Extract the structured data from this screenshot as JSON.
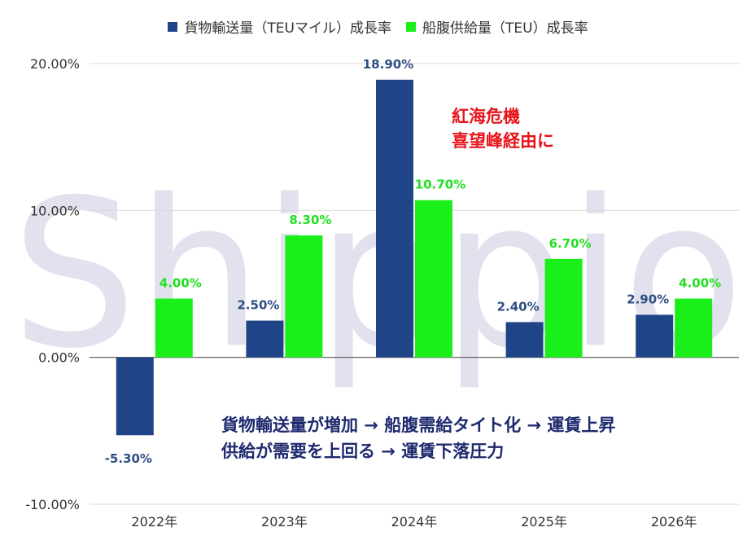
{
  "legend": {
    "series1": "貨物輸送量（TEUマイル）成長率",
    "series2": "船腹供給量（TEU）成長率"
  },
  "watermark": "Shippio",
  "annotations": {
    "red_line1": "紅海危機",
    "red_line2": "喜望峰経由に",
    "blue_line1": "貨物輸送量が増加 → 船腹需給タイト化 → 運賃上昇",
    "blue_line2": "供給が需要を上回る → 運賃下落圧力"
  },
  "colors": {
    "series1": "#1f4488",
    "series2": "#1aef1a",
    "label1": "#2f4f85",
    "label2": "#21e021",
    "watermark": "#e2e2ee",
    "annotation_red": "#e8141b",
    "annotation_blue": "#1f2a6e"
  },
  "chart_data": {
    "type": "bar",
    "categories": [
      "2022年",
      "2023年",
      "2024年",
      "2025年",
      "2026年"
    ],
    "series": [
      {
        "name": "貨物輸送量（TEUマイル）成長率",
        "values": [
          -5.3,
          2.5,
          18.9,
          2.4,
          2.9
        ],
        "labels": [
          "-5.30%",
          "2.50%",
          "18.90%",
          "2.40%",
          "2.90%"
        ]
      },
      {
        "name": "船腹供給量（TEU）成長率",
        "values": [
          4.0,
          8.3,
          10.7,
          6.7,
          4.0
        ],
        "labels": [
          "4.00%",
          "8.30%",
          "10.70%",
          "6.70%",
          "4.00%"
        ]
      }
    ],
    "yticks": [
      "20.00%",
      "10.00%",
      "0.00%",
      "-10.00%"
    ],
    "ytick_values": [
      20,
      10,
      0,
      -10
    ],
    "ylim": [
      -10,
      20
    ],
    "grid": true,
    "legend_position": "top"
  }
}
